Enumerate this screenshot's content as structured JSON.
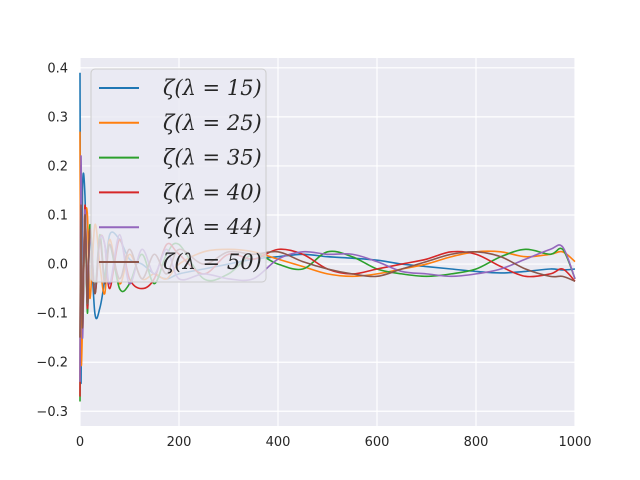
{
  "chart_data": {
    "type": "line",
    "title": "",
    "xlabel": "",
    "ylabel": "",
    "xlim": [
      0,
      1000
    ],
    "ylim": [
      -0.33,
      0.42
    ],
    "grid": true,
    "legend_position": "upper-left",
    "x_ticks": [
      0,
      200,
      400,
      600,
      800,
      1000
    ],
    "x_tick_labels": [
      "0",
      "200",
      "400",
      "600",
      "800",
      "1000"
    ],
    "y_ticks": [
      -0.3,
      -0.2,
      -0.1,
      0.0,
      0.1,
      0.2,
      0.3,
      0.4
    ],
    "y_tick_labels": [
      "−0.3",
      "−0.2",
      "−0.1",
      "0.0",
      "0.1",
      "0.2",
      "0.3",
      "0.4"
    ],
    "x": [
      0,
      2,
      5,
      10,
      15,
      20,
      30,
      40,
      50,
      60,
      80,
      100,
      125,
      150,
      175,
      200,
      250,
      300,
      350,
      400,
      450,
      500,
      550,
      600,
      650,
      700,
      750,
      800,
      850,
      900,
      950,
      975,
      1000
    ],
    "series": [
      {
        "name": "ζ(λ = 15)",
        "color": "#1f77b4",
        "values": [
          0.39,
          -0.24,
          0.15,
          0.14,
          -0.09,
          0.06,
          -0.1,
          -0.09,
          -0.03,
          0.06,
          0.05,
          0.01,
          0.0,
          -0.02,
          -0.03,
          -0.02,
          -0.01,
          0.0,
          0.01,
          0.015,
          0.02,
          0.015,
          0.012,
          0.008,
          0.0,
          -0.005,
          -0.01,
          -0.015,
          -0.018,
          -0.015,
          -0.01,
          -0.012,
          -0.01
        ]
      },
      {
        "name": "ζ(λ = 25)",
        "color": "#ff7f0e",
        "values": [
          0.27,
          -0.18,
          -0.13,
          0.08,
          0.1,
          -0.07,
          0.08,
          0.0,
          -0.06,
          0.05,
          -0.04,
          0.02,
          -0.03,
          -0.02,
          -0.03,
          0.0,
          0.025,
          0.03,
          0.025,
          0.01,
          -0.005,
          -0.02,
          -0.025,
          -0.02,
          -0.01,
          0.0,
          0.015,
          0.025,
          0.025,
          0.015,
          0.02,
          0.025,
          0.005
        ]
      },
      {
        "name": "ζ(λ = 35)",
        "color": "#2ca02c",
        "values": [
          -0.28,
          0.17,
          -0.12,
          0.1,
          -0.1,
          0.08,
          -0.05,
          0.06,
          -0.03,
          0.04,
          -0.05,
          -0.04,
          0.02,
          -0.04,
          0.02,
          0.04,
          -0.03,
          -0.02,
          0.02,
          0.0,
          -0.01,
          0.025,
          0.015,
          -0.01,
          -0.02,
          -0.025,
          -0.02,
          -0.01,
          0.015,
          0.03,
          0.02,
          0.03,
          -0.03
        ]
      },
      {
        "name": "ζ(λ = 40)",
        "color": "#d62728",
        "values": [
          -0.27,
          0.2,
          -0.14,
          0.12,
          -0.09,
          0.07,
          -0.06,
          0.05,
          0.04,
          -0.05,
          0.05,
          -0.03,
          -0.05,
          -0.03,
          0.04,
          0.02,
          -0.02,
          0.02,
          0.01,
          0.03,
          0.02,
          -0.01,
          -0.02,
          -0.01,
          0.0,
          0.01,
          0.025,
          0.02,
          -0.005,
          -0.025,
          -0.02,
          -0.01,
          -0.035
        ]
      },
      {
        "name": "ζ(λ = 44)",
        "color": "#9467bd",
        "values": [
          -0.24,
          0.22,
          -0.15,
          0.11,
          -0.08,
          0.06,
          -0.05,
          0.05,
          0.04,
          -0.04,
          0.06,
          -0.04,
          0.03,
          -0.02,
          0.03,
          -0.03,
          -0.02,
          -0.03,
          -0.03,
          0.01,
          0.025,
          0.02,
          0.02,
          0.005,
          -0.015,
          -0.02,
          -0.025,
          -0.02,
          -0.01,
          0.01,
          0.03,
          0.035,
          -0.03
        ]
      },
      {
        "name": "ζ(λ = 50)",
        "color": "#8c564b",
        "values": [
          -0.15,
          0.12,
          -0.13,
          0.1,
          -0.08,
          0.07,
          -0.06,
          0.05,
          -0.04,
          0.04,
          -0.03,
          0.03,
          -0.03,
          0.02,
          -0.02,
          0.03,
          0.0,
          0.025,
          0.02,
          0.025,
          0.005,
          -0.01,
          -0.02,
          -0.025,
          -0.01,
          0.005,
          0.02,
          0.025,
          0.015,
          -0.01,
          -0.025,
          -0.025,
          -0.035
        ]
      }
    ]
  }
}
